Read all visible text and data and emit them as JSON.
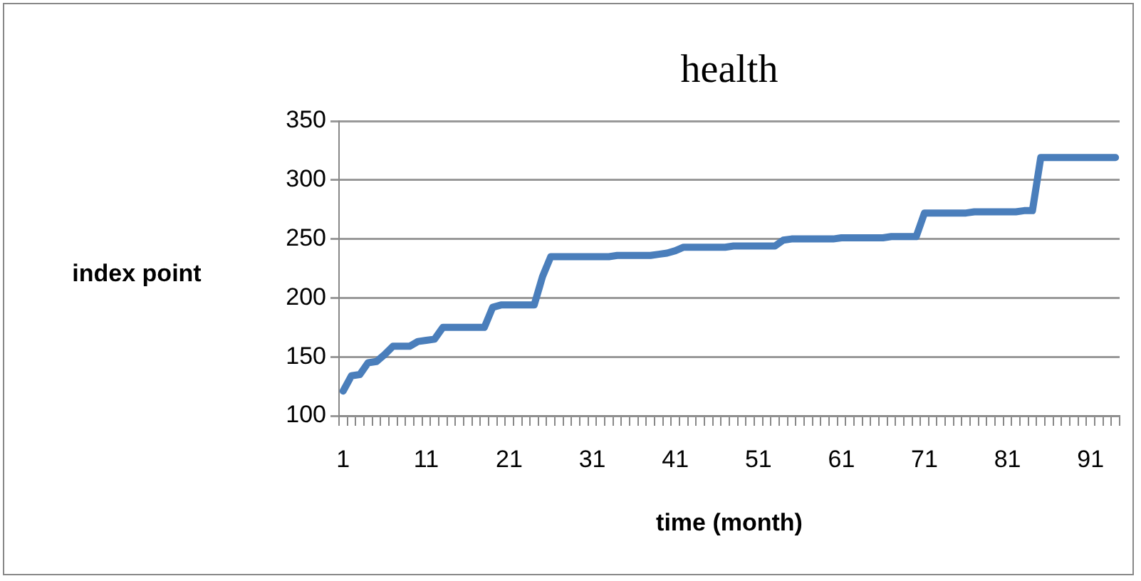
{
  "chart_data": {
    "type": "line",
    "title": "health",
    "xlabel": "time (month)",
    "ylabel": "index point",
    "categories": [
      "1",
      null,
      null,
      null,
      null,
      null,
      null,
      null,
      null,
      null,
      "11",
      null,
      null,
      null,
      null,
      null,
      null,
      null,
      null,
      null,
      "21",
      null,
      null,
      null,
      null,
      null,
      null,
      null,
      null,
      null,
      "31",
      null,
      null,
      null,
      null,
      null,
      null,
      null,
      null,
      null,
      "41",
      null,
      null,
      null,
      null,
      null,
      null,
      null,
      null,
      null,
      "51",
      null,
      null,
      null,
      null,
      null,
      null,
      null,
      null,
      null,
      "61",
      null,
      null,
      null,
      null,
      null,
      null,
      null,
      null,
      null,
      "71",
      null,
      null,
      null,
      null,
      null,
      null,
      null,
      null,
      null,
      "81",
      null,
      null,
      null,
      null,
      null,
      null,
      null,
      null,
      null,
      "91",
      null,
      null,
      null
    ],
    "series": [
      {
        "color": "#4a7ebb",
        "values": [
          121,
          134,
          135,
          145,
          146,
          152,
          159,
          159,
          159,
          163,
          164,
          165,
          175,
          175,
          175,
          175,
          175,
          175,
          192,
          194,
          194,
          194,
          194,
          194,
          218,
          235,
          235,
          235,
          235,
          235,
          235,
          235,
          235,
          236,
          236,
          236,
          236,
          236,
          237,
          238,
          240,
          243,
          243,
          243,
          243,
          243,
          243,
          244,
          244,
          244,
          244,
          244,
          244,
          249,
          250,
          250,
          250,
          250,
          250,
          250,
          251,
          251,
          251,
          251,
          251,
          251,
          252,
          252,
          252,
          252,
          272,
          272,
          272,
          272,
          272,
          272,
          273,
          273,
          273,
          273,
          273,
          273,
          274,
          274,
          319,
          319,
          319,
          319,
          319,
          319,
          319,
          319,
          319,
          319
        ]
      }
    ],
    "ylim": [
      100,
      350
    ],
    "yticks": [
      100,
      150,
      200,
      250,
      300,
      350
    ],
    "grid": "y",
    "marker": "none",
    "line_style": "solid"
  }
}
